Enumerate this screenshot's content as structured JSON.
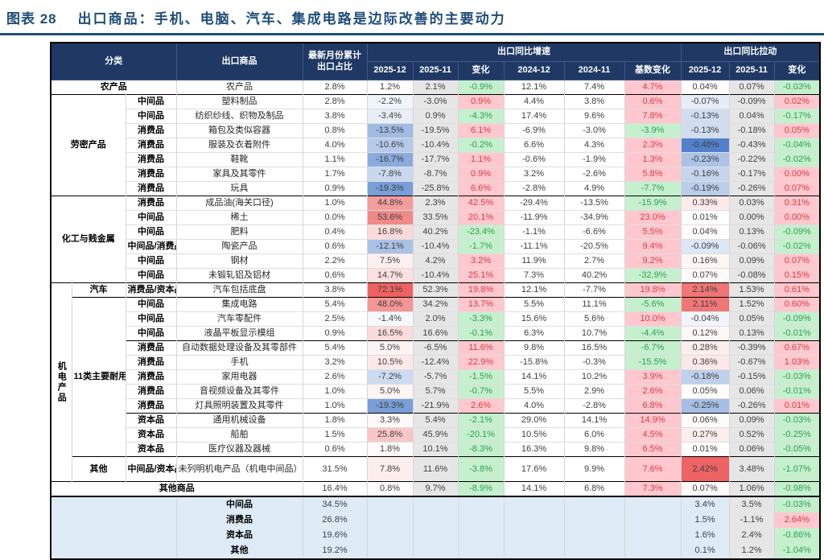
{
  "title": {
    "prefix": "图表 28",
    "text": "出口商品：手机、电脑、汽车、集成电路是边际改善的主要动力"
  },
  "colors": {
    "header_bg": "#1F3864",
    "title": "#1F4E79",
    "rule": "#1F4E79",
    "green_bg": "#C6EFCE",
    "green_text": "#2EA052",
    "pink_bg": "#FFC7CE",
    "red_text": "#D93B42",
    "gray_bg": "#E7E6E6",
    "summary_bg": "#DEEBF7",
    "scale_red": "#EE6161",
    "scale_blue": "#4A7CCB",
    "text": "#404040"
  },
  "chart_data": {
    "type": "table",
    "title": "出口商品：手机、电脑、汽车、集成电路是边际改善的主要动力",
    "headers": {
      "category": "分类",
      "product": "出口商品",
      "share_top": "最新月份累计",
      "share_bottom": "出口占比",
      "growth_group": "出口同比增速",
      "pull_group": "出口同比拉动",
      "growth_cols": [
        "2025-12",
        "2025-11",
        "变化",
        "2024-12",
        "2024-11",
        "基数变化"
      ],
      "pull_cols": [
        "2025-12",
        "2025-11",
        "变化"
      ]
    },
    "scales": {
      "growth": {
        "pos_max": 72,
        "neg_max": 26
      },
      "pull": {
        "pos_max": 2.45,
        "neg_max": 0.5
      }
    },
    "rows": [
      {
        "sect": true,
        "lead": [
          {
            "text": "农产品",
            "cs": 3
          }
        ],
        "product": "农产品",
        "share": "2.8%",
        "g": [
          "1.2%",
          "2.1%",
          "-0.9%",
          "12.1%",
          "7.4%",
          "4.7%"
        ],
        "p": [
          "0.04%",
          "0.07%",
          "-0.03%"
        ]
      },
      {
        "sect": true,
        "lead": [
          {
            "text": "劳密产品",
            "cs": 2,
            "rs": 7
          },
          {
            "text": "中间品",
            "cls": "type"
          }
        ],
        "product": "塑料制品",
        "share": "2.8%",
        "g": [
          "-2.2%",
          "-3.0%",
          "0.9%",
          "4.4%",
          "3.8%",
          "0.6%"
        ],
        "p": [
          "-0.07%",
          "-0.09%",
          "0.02%"
        ]
      },
      {
        "lead": [
          {
            "text": "中间品",
            "cls": "type"
          }
        ],
        "product": "纺织纱线、织物及制品",
        "share": "3.8%",
        "g": [
          "-3.4%",
          "0.9%",
          "-4.3%",
          "17.4%",
          "9.6%",
          "7.8%"
        ],
        "p": [
          "-0.13%",
          "0.04%",
          "-0.17%"
        ]
      },
      {
        "lead": [
          {
            "text": "消费品",
            "cls": "type"
          }
        ],
        "product": "箱包及类似容器",
        "share": "0.8%",
        "g": [
          "-13.5%",
          "-19.5%",
          "6.1%",
          "-6.9%",
          "-3.0%",
          "-3.9%"
        ],
        "p": [
          "-0.13%",
          "-0.18%",
          "0.05%"
        ]
      },
      {
        "lead": [
          {
            "text": "消费品",
            "cls": "type"
          }
        ],
        "product": "服装及衣着附件",
        "share": "4.0%",
        "g": [
          "-10.6%",
          "-10.4%",
          "-0.2%",
          "6.6%",
          "4.3%",
          "2.3%"
        ],
        "p": [
          "-0.48%",
          "-0.43%",
          "-0.04%"
        ]
      },
      {
        "lead": [
          {
            "text": "消费品",
            "cls": "type"
          }
        ],
        "product": "鞋靴",
        "share": "1.1%",
        "g": [
          "-16.7%",
          "-17.7%",
          "1.1%",
          "-0.6%",
          "-1.9%",
          "1.3%"
        ],
        "p": [
          "-0.23%",
          "-0.22%",
          "-0.02%"
        ]
      },
      {
        "lead": [
          {
            "text": "消费品",
            "cls": "type"
          }
        ],
        "product": "家具及其零件",
        "share": "1.7%",
        "g": [
          "-7.8%",
          "-8.7%",
          "0.9%",
          "3.2%",
          "-2.6%",
          "5.8%"
        ],
        "p": [
          "-0.16%",
          "-0.17%",
          "0.00%"
        ]
      },
      {
        "lead": [
          {
            "text": "消费品",
            "cls": "type"
          }
        ],
        "product": "玩具",
        "share": "0.9%",
        "g": [
          "-19.3%",
          "-25.8%",
          "6.6%",
          "-2.8%",
          "4.9%",
          "-7.7%"
        ],
        "p": [
          "-0.19%",
          "-0.26%",
          "0.07%"
        ]
      },
      {
        "sect": true,
        "lead": [
          {
            "text": "化工与贱金属",
            "cs": 2,
            "rs": 6
          },
          {
            "text": "消费品",
            "cls": "type"
          }
        ],
        "product": "成品油(海关口径)",
        "share": "1.0%",
        "g": [
          "44.8%",
          "2.3%",
          "42.5%",
          "-29.4%",
          "-13.5%",
          "-15.9%"
        ],
        "p": [
          "0.33%",
          "0.03%",
          "0.31%"
        ]
      },
      {
        "lead": [
          {
            "text": "中间品",
            "cls": "type"
          }
        ],
        "product": "稀土",
        "share": "0.0%",
        "g": [
          "53.6%",
          "33.5%",
          "20.1%",
          "-11.9%",
          "-34.9%",
          "23.0%"
        ],
        "p": [
          "0.01%",
          "0.00%",
          "0.00%"
        ]
      },
      {
        "lead": [
          {
            "text": "中间品",
            "cls": "type"
          }
        ],
        "product": "肥料",
        "share": "0.4%",
        "g": [
          "16.8%",
          "40.2%",
          "-23.4%",
          "-1.1%",
          "-6.6%",
          "5.5%"
        ],
        "p": [
          "0.04%",
          "0.13%",
          "-0.09%"
        ]
      },
      {
        "lead": [
          {
            "text": "中间品/消费品",
            "cls": "type"
          }
        ],
        "product": "陶瓷产品",
        "share": "0.6%",
        "g": [
          "-12.1%",
          "-10.4%",
          "-1.7%",
          "-11.1%",
          "-20.5%",
          "9.4%"
        ],
        "p": [
          "-0.09%",
          "-0.06%",
          "-0.02%"
        ]
      },
      {
        "lead": [
          {
            "text": "中间品",
            "cls": "type"
          }
        ],
        "product": "钢材",
        "share": "2.2%",
        "g": [
          "7.5%",
          "4.2%",
          "3.2%",
          "11.9%",
          "2.7%",
          "9.2%"
        ],
        "p": [
          "0.16%",
          "0.09%",
          "0.07%"
        ]
      },
      {
        "lead": [
          {
            "text": "中间品",
            "cls": "type"
          }
        ],
        "product": "未锻轧铝及铝材",
        "share": "0.6%",
        "g": [
          "14.7%",
          "-10.4%",
          "25.1%",
          "7.3%",
          "40.2%",
          "-32.9%"
        ],
        "p": [
          "0.07%",
          "-0.08%",
          "0.15%"
        ]
      },
      {
        "sect": true,
        "lead": [
          {
            "text": "机电产品",
            "rs": 13,
            "cls": "vert"
          },
          {
            "text": "汽车"
          },
          {
            "text": "消费品/资本品",
            "cls": "type"
          }
        ],
        "product": "汽车包括底盘",
        "share": "3.8%",
        "g": [
          "72.1%",
          "52.3%",
          "19.8%",
          "12.1%",
          "-7.7%",
          "19.8%"
        ],
        "p": [
          "2.14%",
          "1.53%",
          "0.61%"
        ]
      },
      {
        "sect": true,
        "lead": [
          {
            "text": "11类主要耐用品",
            "rs": 11
          },
          {
            "text": "中间品",
            "cls": "type"
          }
        ],
        "product": "集成电路",
        "share": "5.4%",
        "g": [
          "48.0%",
          "34.2%",
          "13.7%",
          "5.5%",
          "11.1%",
          "-5.6%"
        ],
        "p": [
          "2.11%",
          "1.52%",
          "0.60%"
        ]
      },
      {
        "lead": [
          {
            "text": "中间品",
            "cls": "type"
          }
        ],
        "product": "汽车零配件",
        "share": "2.5%",
        "g": [
          "-1.4%",
          "2.0%",
          "-3.3%",
          "15.6%",
          "5.6%",
          "10.0%"
        ],
        "p": [
          "-0.04%",
          "0.05%",
          "-0.09%"
        ]
      },
      {
        "lead": [
          {
            "text": "中间品",
            "cls": "type"
          }
        ],
        "product": "液晶平板显示模组",
        "share": "0.9%",
        "g": [
          "16.5%",
          "16.6%",
          "-0.1%",
          "6.3%",
          "10.7%",
          "-4.4%"
        ],
        "p": [
          "0.12%",
          "0.13%",
          "-0.01%"
        ]
      },
      {
        "sect": true,
        "lead": [
          {
            "text": "消费品",
            "cls": "type"
          }
        ],
        "product": "自动数据处理设备及其零部件",
        "share": "5.4%",
        "g": [
          "5.0%",
          "-6.5%",
          "11.6%",
          "9.8%",
          "16.5%",
          "-6.7%"
        ],
        "p": [
          "0.28%",
          "-0.39%",
          "0.67%"
        ]
      },
      {
        "lead": [
          {
            "text": "消费品",
            "cls": "type"
          }
        ],
        "product": "手机",
        "share": "3.2%",
        "g": [
          "10.5%",
          "-12.4%",
          "22.9%",
          "-15.8%",
          "-0.3%",
          "-15.5%"
        ],
        "p": [
          "0.36%",
          "-0.67%",
          "1.03%"
        ]
      },
      {
        "lead": [
          {
            "text": "消费品",
            "cls": "type"
          }
        ],
        "product": "家用电器",
        "share": "2.6%",
        "g": [
          "-7.2%",
          "-5.7%",
          "-1.5%",
          "14.1%",
          "10.2%",
          "3.9%"
        ],
        "p": [
          "-0.18%",
          "-0.15%",
          "-0.03%"
        ]
      },
      {
        "lead": [
          {
            "text": "消费品",
            "cls": "type"
          }
        ],
        "product": "音视频设备及其零件",
        "share": "1.0%",
        "g": [
          "5.0%",
          "5.7%",
          "-0.7%",
          "5.5%",
          "2.9%",
          "2.6%"
        ],
        "p": [
          "0.05%",
          "0.06%",
          "-0.01%"
        ]
      },
      {
        "lead": [
          {
            "text": "消费品",
            "cls": "type"
          }
        ],
        "product": "灯具照明装置及其零件",
        "share": "1.0%",
        "g": [
          "-19.3%",
          "-21.9%",
          "2.6%",
          "4.0%",
          "-2.8%",
          "6.8%"
        ],
        "p": [
          "-0.25%",
          "-0.26%",
          "0.01%"
        ]
      },
      {
        "sect": true,
        "lead": [
          {
            "text": "资本品",
            "cls": "type"
          }
        ],
        "product": "通用机械设备",
        "share": "1.8%",
        "g": [
          "3.3%",
          "5.4%",
          "-2.1%",
          "29.0%",
          "14.1%",
          "14.9%"
        ],
        "p": [
          "0.06%",
          "0.09%",
          "-0.03%"
        ]
      },
      {
        "lead": [
          {
            "text": "资本品",
            "cls": "type"
          }
        ],
        "product": "船舶",
        "share": "1.5%",
        "g": [
          "25.8%",
          "45.9%",
          "-20.1%",
          "10.5%",
          "6.0%",
          "4.5%"
        ],
        "p": [
          "0.27%",
          "0.52%",
          "-0.25%"
        ]
      },
      {
        "lead": [
          {
            "text": "资本品",
            "cls": "type"
          }
        ],
        "product": "医疗仪器及器械",
        "share": "0.6%",
        "g": [
          "1.8%",
          "10.1%",
          "-8.3%",
          "16.3%",
          "9.8%",
          "6.5%"
        ],
        "p": [
          "0.01%",
          "0.06%",
          "-0.05%"
        ]
      },
      {
        "sect": true,
        "tall": true,
        "lead": [
          {
            "text": "其他"
          },
          {
            "text": "中间品/资本品",
            "cls": "type"
          }
        ],
        "product": "未列明机电产品（机电中间品）",
        "share": "31.5%",
        "g": [
          "7.8%",
          "11.6%",
          "-3.8%",
          "17.6%",
          "9.9%",
          "7.6%"
        ],
        "p": [
          "2.42%",
          "3.48%",
          "-1.07%"
        ]
      },
      {
        "sect": true,
        "lead": [
          {
            "text": "其他商品",
            "cs": 4
          }
        ],
        "product": null,
        "share": "16.4%",
        "g": [
          "0.8%",
          "9.7%",
          "-8.9%",
          "14.1%",
          "6.8%",
          "7.3%"
        ],
        "p": [
          "0.07%",
          "1.06%",
          "-0.98%"
        ]
      }
    ],
    "summary_rows": [
      {
        "label": "中间品",
        "share": "34.5%",
        "p": [
          "3.4%",
          "3.5%",
          "-0.03%"
        ]
      },
      {
        "label": "消费品",
        "share": "26.8%",
        "p": [
          "1.5%",
          "-1.1%",
          "2.64%"
        ]
      },
      {
        "label": "资本品",
        "share": "19.6%",
        "p": [
          "1.6%",
          "2.4%",
          "-0.86%"
        ]
      },
      {
        "label": "其他",
        "share": "19.2%",
        "p": [
          "0.1%",
          "1.2%",
          "-1.04%"
        ]
      }
    ]
  }
}
